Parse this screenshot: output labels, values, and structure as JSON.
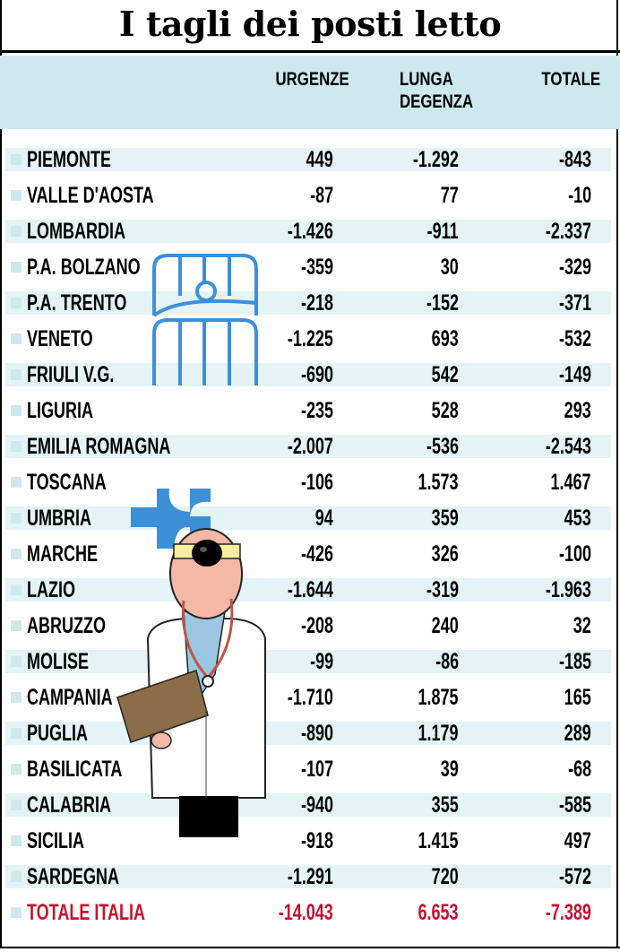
{
  "title": "I tagli dei posti letto",
  "chart_data": {
    "type": "table",
    "columns": [
      "URGENZE",
      "LUNGA DEGENZA",
      "TOTALE"
    ],
    "column_labels": {
      "urgenze": "URGENZE",
      "lunga_line1": "LUNGA",
      "lunga_line2": "DEGENZA",
      "totale": "TOTALE"
    },
    "rows": [
      {
        "name": "PIEMONTE",
        "urgenze": "449",
        "lunga": "-1.292",
        "totale": "-843"
      },
      {
        "name": "VALLE D'AOSTA",
        "urgenze": "-87",
        "lunga": "77",
        "totale": "-10"
      },
      {
        "name": "LOMBARDIA",
        "urgenze": "-1.426",
        "lunga": "-911",
        "totale": "-2.337"
      },
      {
        "name": "P.A. BOLZANO",
        "urgenze": "-359",
        "lunga": "30",
        "totale": "-329"
      },
      {
        "name": "P.A. TRENTO",
        "urgenze": "-218",
        "lunga": "-152",
        "totale": "-371"
      },
      {
        "name": "VENETO",
        "urgenze": "-1.225",
        "lunga": "693",
        "totale": "-532"
      },
      {
        "name": "FRIULI V.G.",
        "urgenze": "-690",
        "lunga": "542",
        "totale": "-149"
      },
      {
        "name": "LIGURIA",
        "urgenze": "-235",
        "lunga": "528",
        "totale": "293"
      },
      {
        "name": "EMILIA ROMAGNA",
        "urgenze": "-2.007",
        "lunga": "-536",
        "totale": "-2.543"
      },
      {
        "name": "TOSCANA",
        "urgenze": "-106",
        "lunga": "1.573",
        "totale": "1.467"
      },
      {
        "name": "UMBRIA",
        "urgenze": "94",
        "lunga": "359",
        "totale": "453"
      },
      {
        "name": "MARCHE",
        "urgenze": "-426",
        "lunga": "326",
        "totale": "-100"
      },
      {
        "name": "LAZIO",
        "urgenze": "-1.644",
        "lunga": "-319",
        "totale": "-1.963"
      },
      {
        "name": "ABRUZZO",
        "urgenze": "-208",
        "lunga": "240",
        "totale": "32"
      },
      {
        "name": "MOLISE",
        "urgenze": "-99",
        "lunga": "-86",
        "totale": "-185"
      },
      {
        "name": "CAMPANIA",
        "urgenze": "-1.710",
        "lunga": "1.875",
        "totale": "165"
      },
      {
        "name": "PUGLIA",
        "urgenze": "-890",
        "lunga": "1.179",
        "totale": "289"
      },
      {
        "name": "BASILICATA",
        "urgenze": "-107",
        "lunga": "39",
        "totale": "-68"
      },
      {
        "name": "CALABRIA",
        "urgenze": "-940",
        "lunga": "355",
        "totale": "-585"
      },
      {
        "name": "SICILIA",
        "urgenze": "-918",
        "lunga": "1.415",
        "totale": "497"
      },
      {
        "name": "SARDEGNA",
        "urgenze": "-1.291",
        "lunga": "720",
        "totale": "-572"
      }
    ],
    "total": {
      "name": "TOTALE ITALIA",
      "urgenze": "-14.043",
      "lunga": "6.653",
      "totale": "-7.389"
    }
  },
  "colors": {
    "header_bg": "#cde9ee",
    "row_shade": "#e3f3f6",
    "total_text": "#c8102e",
    "illustration_blue": "#3d8fd8"
  },
  "icons": [
    "hospital-bed-icon",
    "medical-cross-icon",
    "doctor-illustration"
  ]
}
